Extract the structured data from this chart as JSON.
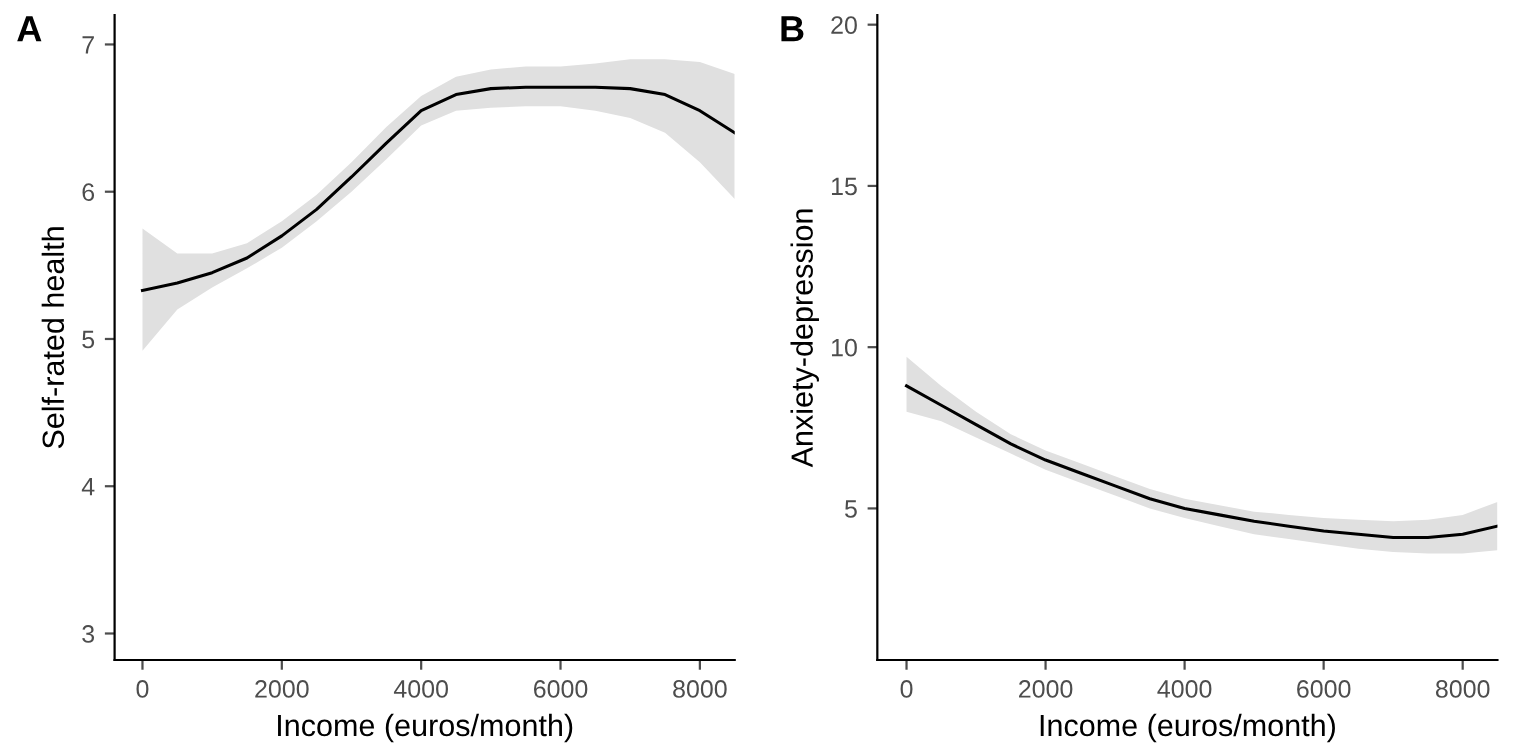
{
  "chart_data": [
    {
      "type": "line",
      "title": "A",
      "xlabel": "Income (euros/month)",
      "ylabel": "Self-rated health",
      "xlim": [
        -400,
        8500
      ],
      "ylim": [
        2.82,
        7.2
      ],
      "xticks": [
        0,
        2000,
        4000,
        6000,
        8000
      ],
      "yticks": [
        3,
        4,
        5,
        6,
        7
      ],
      "grid": false,
      "legend": false,
      "series": [
        {
          "color": "#000000",
          "x": [
            0,
            500,
            1000,
            1500,
            2000,
            2500,
            3000,
            3500,
            4000,
            4500,
            5000,
            5500,
            6000,
            6500,
            7000,
            7500,
            8000,
            8500
          ],
          "values": [
            5.33,
            5.38,
            5.45,
            5.55,
            5.7,
            5.88,
            6.1,
            6.33,
            6.55,
            6.66,
            6.7,
            6.71,
            6.71,
            6.71,
            6.7,
            6.66,
            6.55,
            6.4
          ],
          "lower": [
            4.92,
            5.2,
            5.35,
            5.48,
            5.62,
            5.8,
            6.0,
            6.22,
            6.45,
            6.55,
            6.57,
            6.58,
            6.58,
            6.55,
            6.5,
            6.4,
            6.2,
            5.95
          ],
          "upper": [
            5.75,
            5.58,
            5.58,
            5.65,
            5.8,
            5.98,
            6.2,
            6.44,
            6.65,
            6.78,
            6.83,
            6.85,
            6.85,
            6.87,
            6.9,
            6.9,
            6.88,
            6.8
          ]
        }
      ]
    },
    {
      "type": "line",
      "title": "B",
      "xlabel": "Income (euros/month)",
      "ylabel": "Anxiety-depression",
      "xlim": [
        -420,
        8500
      ],
      "ylim": [
        0.3,
        20.3
      ],
      "xticks": [
        0,
        2000,
        4000,
        6000,
        8000
      ],
      "yticks": [
        5,
        10,
        15,
        20
      ],
      "grid": false,
      "legend": false,
      "series": [
        {
          "color": "#000000",
          "x": [
            0,
            500,
            1000,
            1500,
            2000,
            2500,
            3000,
            3500,
            4000,
            4500,
            5000,
            5500,
            6000,
            6500,
            7000,
            7500,
            8000,
            8500
          ],
          "values": [
            8.8,
            8.2,
            7.6,
            7.0,
            6.5,
            6.1,
            5.7,
            5.3,
            5.0,
            4.8,
            4.6,
            4.45,
            4.3,
            4.2,
            4.1,
            4.1,
            4.2,
            4.45
          ],
          "lower": [
            8.0,
            7.7,
            7.2,
            6.7,
            6.2,
            5.8,
            5.4,
            5.0,
            4.7,
            4.45,
            4.2,
            4.05,
            3.9,
            3.75,
            3.65,
            3.6,
            3.6,
            3.7
          ],
          "upper": [
            9.7,
            8.8,
            8.0,
            7.3,
            6.8,
            6.4,
            6.0,
            5.6,
            5.3,
            5.1,
            4.9,
            4.8,
            4.7,
            4.65,
            4.6,
            4.65,
            4.8,
            5.2
          ]
        }
      ]
    }
  ]
}
